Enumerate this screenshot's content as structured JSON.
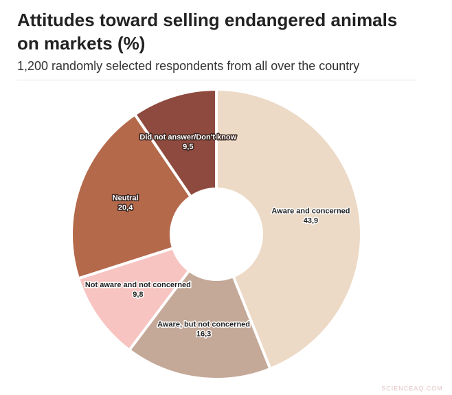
{
  "chart_data": {
    "type": "donut",
    "title": "Attitudes toward selling endangered animals on markets (%)",
    "subtitle": "1,200 randomly selected respondents from all over the country",
    "categories": [
      "Aware and concerned",
      "Aware, but not concerned",
      "Not aware and not concerned",
      "Neutral",
      "Did not answer/Don't know"
    ],
    "values": [
      43.9,
      16.3,
      9.8,
      20.4,
      9.5
    ],
    "value_labels": [
      "43,9",
      "16,3",
      "9,8",
      "20,4",
      "9,5"
    ],
    "colors": [
      "#ecdac6",
      "#c4a898",
      "#f7c4c2",
      "#b5694b",
      "#8e4a3e"
    ],
    "watermark": "SCIENCEAQ.COM"
  }
}
